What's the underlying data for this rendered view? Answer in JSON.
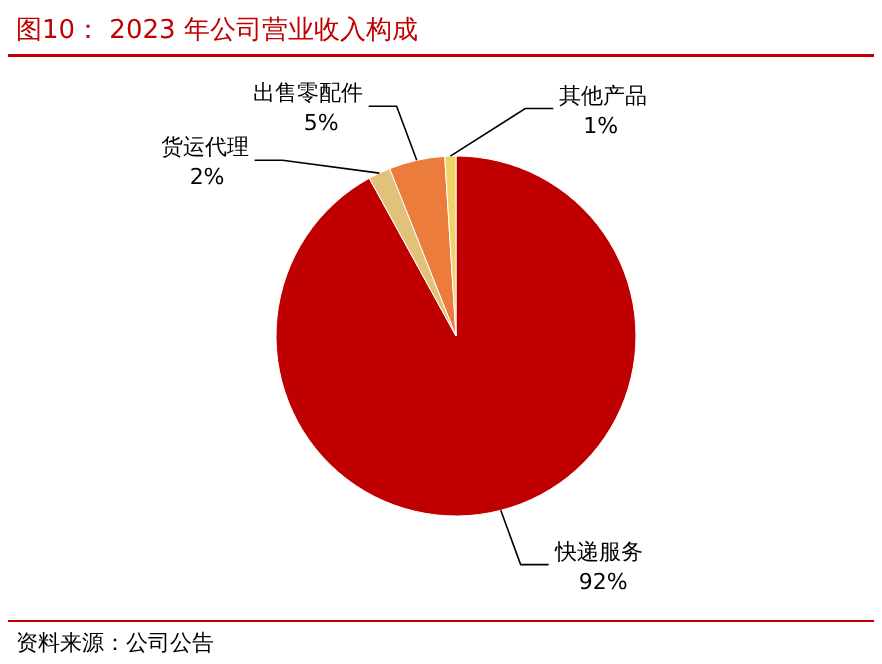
{
  "chart_data": {
    "type": "pie",
    "title": "图10：  2023 年公司营业收入构成",
    "categories": [
      "快递服务",
      "货运代理",
      "出售零配件",
      "其他产品"
    ],
    "values": [
      92,
      2,
      5,
      1
    ],
    "value_labels": [
      "92%",
      "2%",
      "5%",
      "1%"
    ],
    "colors": [
      "#c00000",
      "#e2c27a",
      "#ec7c3c",
      "#f2d36a"
    ],
    "annotations": [
      "资料来源：公司公告"
    ]
  }
}
